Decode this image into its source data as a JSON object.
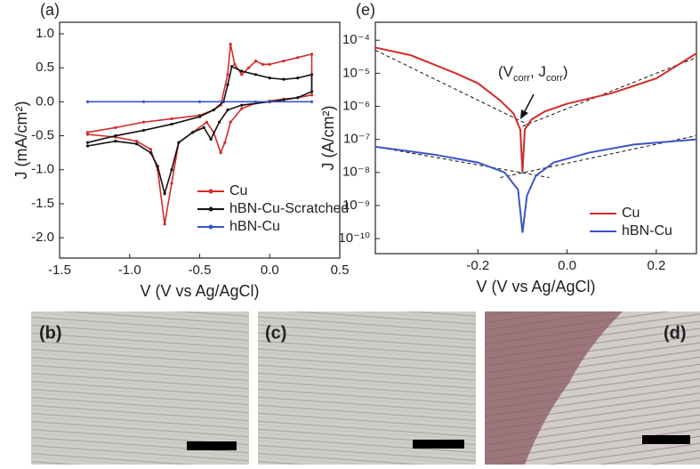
{
  "chart_data": [
    {
      "type": "line",
      "panel_label": "(a)",
      "x_label": "V (V vs Ag/AgCl)",
      "y_label": "J (mA/cm²)",
      "xlim": [
        -1.5,
        0.5
      ],
      "ylim": [
        -2.3,
        1.17
      ],
      "xticks": [
        -1.5,
        {
          "value": -1,
          "label": "-1.0"
        },
        -0.5,
        {
          "value": 0,
          "label": "0.0"
        },
        0.5
      ],
      "yticks": [
        {
          "value": 1,
          "label": "1.0"
        },
        0.5,
        {
          "value": 0,
          "label": "0.0"
        },
        -0.5,
        {
          "value": -1,
          "label": "-1.0"
        },
        -1.5,
        {
          "value": -2,
          "label": "-2.0"
        }
      ],
      "legend": "lower right",
      "series": [
        {
          "name": "Cu",
          "color": "#d42a2a",
          "x": [
            -1.3,
            -1.1,
            -0.9,
            -0.7,
            -0.5,
            -0.4,
            -0.35,
            -0.3,
            -0.28,
            -0.25,
            -0.2,
            -0.15,
            -0.1,
            -0.05,
            0,
            0.1,
            0.2,
            0.3,
            0.3,
            0.2,
            0.1,
            0,
            -0.1,
            -0.2,
            -0.28,
            -0.32,
            -0.35,
            -0.4,
            -0.45,
            -0.55,
            -0.65,
            -0.7,
            -0.75,
            -0.8,
            -0.85,
            -0.95,
            -1.1,
            -1.3
          ],
          "values": [
            -0.45,
            -0.38,
            -0.3,
            -0.25,
            -0.2,
            -0.12,
            -0.05,
            0.4,
            0.85,
            0.55,
            0.4,
            0.5,
            0.6,
            0.55,
            0.55,
            0.6,
            0.65,
            0.7,
            0.1,
            0.06,
            0.04,
            0.01,
            -0.02,
            -0.1,
            -0.3,
            -0.6,
            -0.75,
            -0.45,
            -0.3,
            -0.45,
            -0.6,
            -1.2,
            -1.8,
            -1.0,
            -0.7,
            -0.58,
            -0.52,
            -0.48
          ]
        },
        {
          "name": "hBN-Cu-Scratched",
          "color": "#111111",
          "x": [
            -1.3,
            -1.1,
            -0.9,
            -0.7,
            -0.5,
            -0.4,
            -0.33,
            -0.3,
            -0.27,
            -0.2,
            -0.1,
            0,
            0.1,
            0.2,
            0.3,
            0.3,
            0.2,
            0.1,
            0,
            -0.2,
            -0.3,
            -0.36,
            -0.42,
            -0.47,
            -0.55,
            -0.65,
            -0.7,
            -0.75,
            -0.8,
            -0.85,
            -0.95,
            -1.1,
            -1.3
          ],
          "values": [
            -0.6,
            -0.5,
            -0.42,
            -0.33,
            -0.22,
            -0.12,
            0,
            0.25,
            0.52,
            0.45,
            0.4,
            0.35,
            0.33,
            0.35,
            0.4,
            0.15,
            0.06,
            0.03,
            0.0,
            -0.05,
            -0.12,
            -0.3,
            -0.55,
            -0.38,
            -0.45,
            -0.6,
            -1.0,
            -1.35,
            -0.95,
            -0.75,
            -0.62,
            -0.58,
            -0.65
          ]
        },
        {
          "name": "hBN-Cu",
          "color": "#3a55c8",
          "x": [
            -1.3,
            -0.9,
            -0.5,
            -0.1,
            0.3
          ],
          "values": [
            0,
            0,
            0,
            0,
            0
          ]
        }
      ]
    },
    {
      "type": "line",
      "panel_label": "(e)",
      "x_label": "V (V vs Ag/AgCl)",
      "y_label": "J (A/cm²)",
      "log_y": true,
      "xlim": [
        -0.43,
        0.29
      ],
      "ylim": [
        3.5e-11,
        0.00035
      ],
      "xticks": [
        -0.2,
        {
          "value": 0,
          "label": "0.0"
        },
        0.2
      ],
      "yticks": [
        {
          "value": 0.0001,
          "label": "10⁻⁴"
        },
        {
          "value": 1e-05,
          "label": "10⁻⁵"
        },
        {
          "value": 1e-06,
          "label": "10⁻⁶"
        },
        {
          "value": 1e-07,
          "label": "10⁻⁷"
        },
        {
          "value": 1e-08,
          "label": "10⁻⁸"
        },
        {
          "value": 1e-09,
          "label": "10⁻⁹"
        },
        {
          "value": 1e-10,
          "label": "10⁻¹⁰"
        }
      ],
      "legend": "lower right",
      "annotation": [
        "(V",
        "corr",
        ", J",
        "corr",
        ")"
      ],
      "series": [
        {
          "name": "Cu",
          "color": "#d42a2a",
          "x": [
            -0.43,
            -0.35,
            -0.25,
            -0.2,
            -0.15,
            -0.12,
            -0.105,
            -0.1,
            -0.095,
            -0.08,
            -0.05,
            0,
            0.1,
            0.2,
            0.29
          ],
          "values": [
            6e-05,
            3.5e-05,
            1e-05,
            5e-06,
            1.5e-06,
            6e-07,
            2e-07,
            1e-08,
            2e-07,
            4e-07,
            7e-07,
            1.2e-06,
            2.5e-06,
            7e-06,
            4e-05
          ]
        },
        {
          "name": "hBN-Cu",
          "color": "#3a55c8",
          "x": [
            -0.43,
            -0.3,
            -0.2,
            -0.14,
            -0.11,
            -0.1,
            -0.09,
            -0.07,
            -0.03,
            0.05,
            0.15,
            0.29
          ],
          "values": [
            6e-08,
            3.5e-08,
            2e-08,
            1e-08,
            3e-09,
            1.5e-10,
            2e-09,
            8e-09,
            2e-08,
            4e-08,
            7e-08,
            1e-07
          ]
        }
      ],
      "fit_lines": [
        {
          "x": [
            -0.43,
            -0.08
          ],
          "values": [
            5e-05,
            2.5e-07
          ]
        },
        {
          "x": [
            -0.1,
            0.29
          ],
          "values": [
            2.5e-07,
            3e-05
          ]
        },
        {
          "x": [
            -0.43,
            -0.04
          ],
          "values": [
            6e-08,
            7e-09
          ]
        },
        {
          "x": [
            -0.15,
            0.29
          ],
          "values": [
            7e-09,
            1.3e-07
          ]
        }
      ]
    }
  ],
  "images": [
    {
      "label": "(b)"
    },
    {
      "label": "(c)"
    },
    {
      "label": "(d)"
    }
  ]
}
